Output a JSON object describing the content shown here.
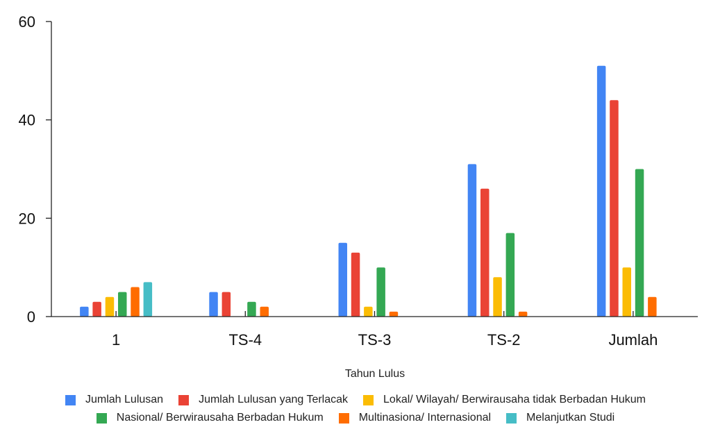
{
  "chart_data": {
    "type": "bar",
    "title": "",
    "xlabel": "Tahun Lulus",
    "ylabel": "",
    "categories": [
      "1",
      "TS-4",
      "TS-3",
      "TS-2",
      "Jumlah"
    ],
    "ylim": [
      0,
      60
    ],
    "yticks": [
      "0",
      "20",
      "40",
      "60"
    ],
    "grid": false,
    "legend_position": "bottom",
    "series": [
      {
        "name": "Jumlah Lulusan",
        "color": "#4285F4",
        "values": [
          2,
          5,
          15,
          31,
          51
        ]
      },
      {
        "name": "Jumlah Lulusan yang Terlacak",
        "color": "#EA4335",
        "values": [
          3,
          5,
          13,
          26,
          44
        ]
      },
      {
        "name": "Lokal/ Wilayah/ Berwirausaha tidak Berbadan Hukum",
        "color": "#FBBC04",
        "values": [
          4,
          0,
          2,
          8,
          10
        ]
      },
      {
        "name": "Nasional/ Berwirausaha Berbadan Hukum",
        "color": "#34A853",
        "values": [
          5,
          3,
          10,
          17,
          30
        ]
      },
      {
        "name": "Multinasiona/ Internasional",
        "color": "#FF6D01",
        "values": [
          6,
          2,
          1,
          1,
          4
        ]
      },
      {
        "name": "Melanjutkan Studi",
        "color": "#46BDC6",
        "values": [
          7,
          0,
          0,
          0,
          0
        ]
      }
    ]
  }
}
